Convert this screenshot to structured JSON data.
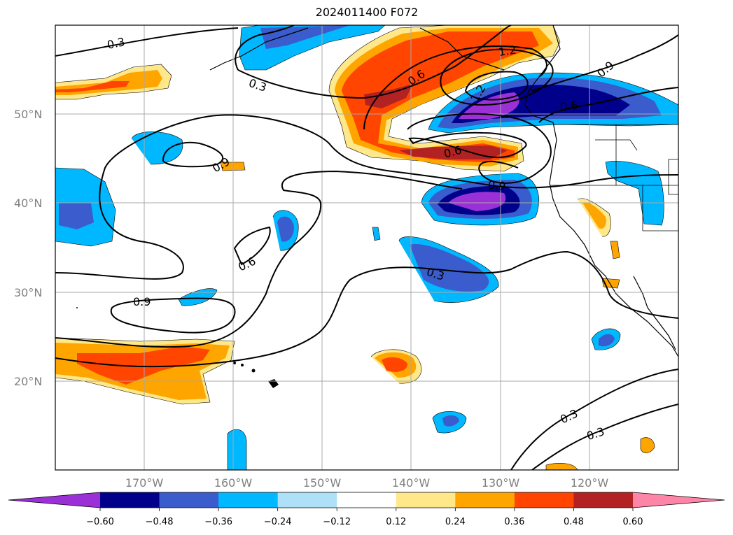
{
  "title": "2024011400 F072",
  "map": {
    "lat_labels": [
      "50°N",
      "40°N",
      "30°N",
      "20°N"
    ],
    "lon_labels": [
      "170°W",
      "160°W",
      "150°W",
      "140°W",
      "130°W",
      "120°W"
    ],
    "contour_labels": [
      "0.3",
      "0.3",
      "0.6",
      "1.2",
      "0.9",
      "1.2",
      "0.6",
      "0.9",
      "0.6",
      "0.9",
      "0.6",
      "0.9",
      "0.3",
      "0.3",
      "0.3"
    ],
    "grid": true,
    "projection": "plate-carree"
  },
  "colorbar": {
    "ticks": [
      "−0.60",
      "−0.48",
      "−0.36",
      "−0.24",
      "−0.12",
      "0.12",
      "0.24",
      "0.36",
      "0.48",
      "0.60"
    ],
    "colors": [
      "#9b30d6",
      "#00008b",
      "#3a5ccc",
      "#00b8ff",
      "#aee0f8",
      "#ffffff",
      "#ffe88a",
      "#ffa500",
      "#ff4500",
      "#b22222",
      "#ff85a8"
    ],
    "extend": "both"
  }
}
